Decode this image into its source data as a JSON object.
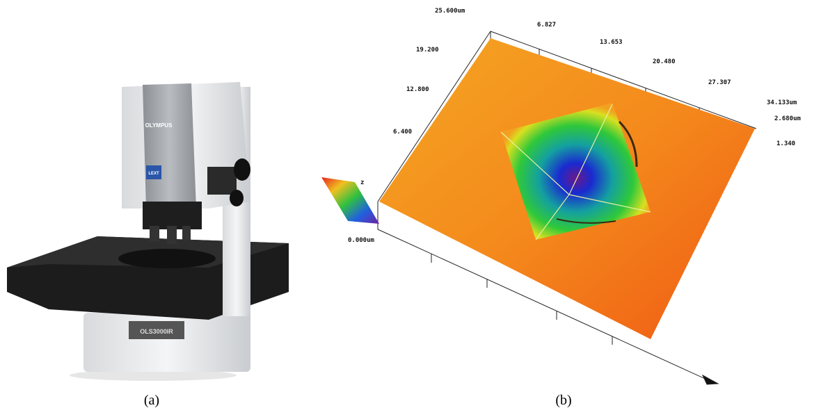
{
  "figure": {
    "panel_a": {
      "caption": "(a)",
      "brand": "OLYMPUS",
      "model": "OLS3000IR",
      "logo": "LEXT"
    },
    "panel_b": {
      "caption": "(b)",
      "labels": [
        "25.600um",
        "19.200",
        "12.800",
        "6.400",
        "0.000um",
        "6.827",
        "13.653",
        "20.480",
        "27.307",
        "34.133um",
        "2.680um",
        "1.340",
        "z"
      ]
    }
  }
}
